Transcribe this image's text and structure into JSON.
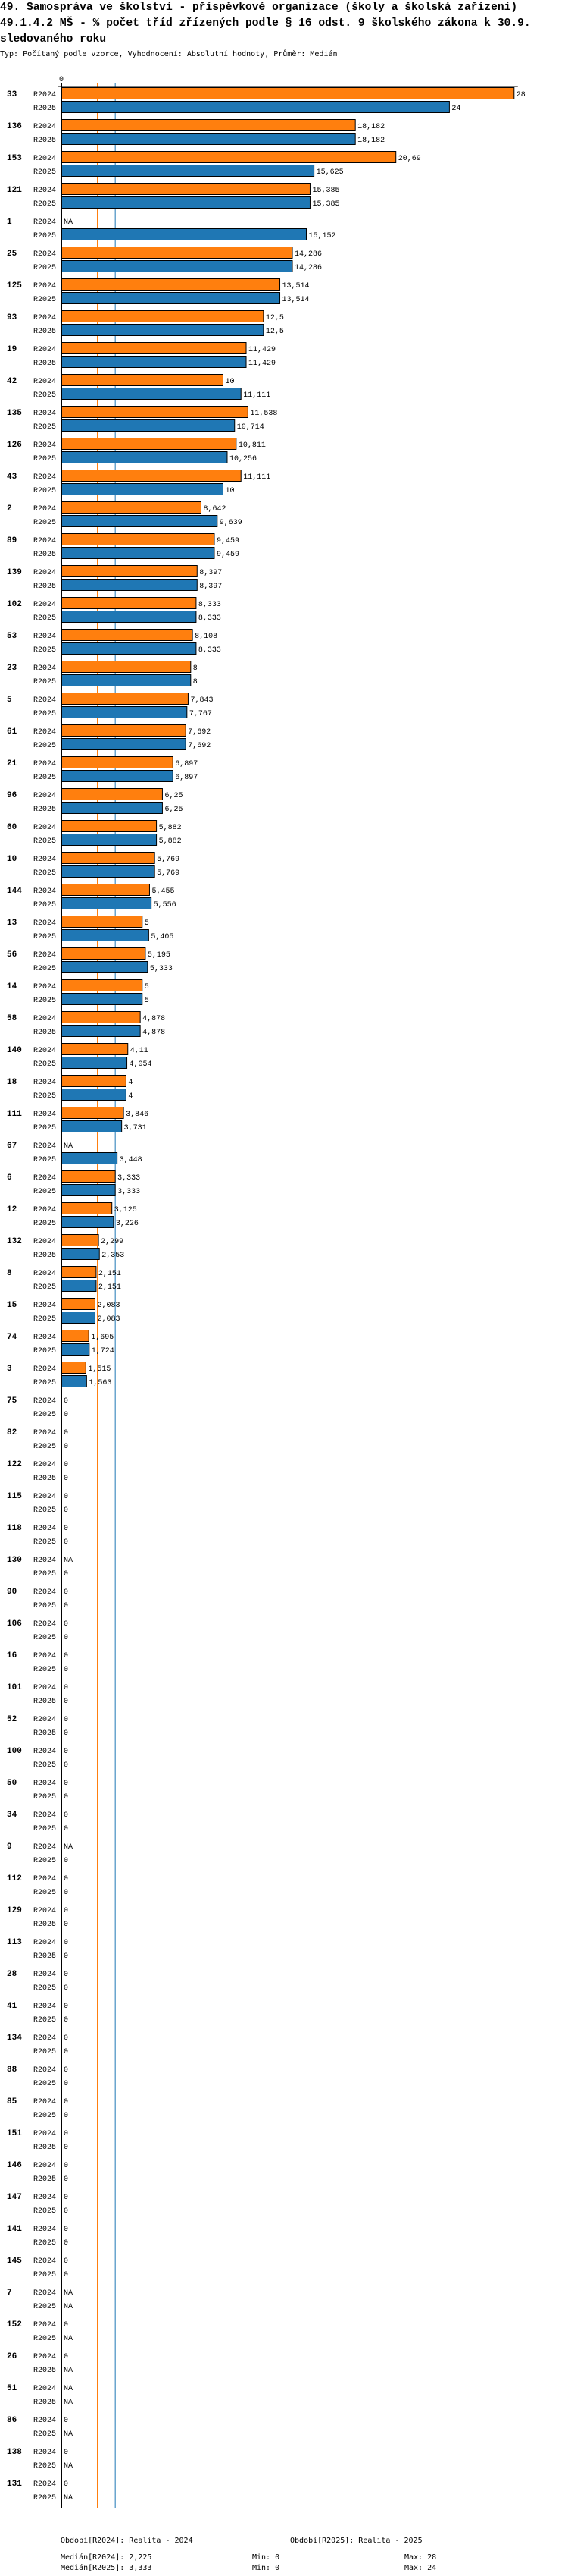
{
  "header": {
    "title": "49. Samospráva ve školství - příspěvkové organizace (školy a školská zařízení) 49.1.4.2 MŠ - % počet tříd zřízených podle § 16 odst. 9 školského zákona k 30.9. sledovaného roku",
    "subtitle": "Typ: Počítaný podle vzorce, Vyhodnocení: Absolutní hodnoty, Průměr: Medián"
  },
  "chart_data": {
    "type": "bar",
    "orientation": "horizontal",
    "title": "49.1.4.2 MŠ - % počet tříd zřízených podle § 16 odst. 9 školského zákona k 30.9. sledovaného roku",
    "x_tick_labels": [
      "0"
    ],
    "xlim": [
      0,
      28
    ],
    "na_label": "NA",
    "categories": [
      "33",
      "136",
      "153",
      "121",
      "1",
      "25",
      "125",
      "93",
      "19",
      "42",
      "135",
      "126",
      "43",
      "2",
      "89",
      "139",
      "102",
      "53",
      "23",
      "5",
      "61",
      "21",
      "96",
      "60",
      "10",
      "144",
      "13",
      "56",
      "14",
      "58",
      "140",
      "18",
      "111",
      "67",
      "6",
      "12",
      "132",
      "8",
      "15",
      "74",
      "3",
      "75",
      "82",
      "122",
      "115",
      "118",
      "130",
      "90",
      "106",
      "16",
      "101",
      "52",
      "100",
      "50",
      "34",
      "9",
      "112",
      "129",
      "113",
      "28",
      "41",
      "134",
      "88",
      "85",
      "151",
      "146",
      "147",
      "141",
      "145",
      "7",
      "152",
      "26",
      "51",
      "86",
      "138",
      "131"
    ],
    "series": [
      {
        "name": "R2024",
        "color": "#ff7f0e",
        "values": [
          28,
          18.182,
          20.69,
          15.385,
          null,
          14.286,
          13.514,
          12.5,
          11.429,
          10,
          11.538,
          10.811,
          11.111,
          8.642,
          9.459,
          8.397,
          8.333,
          8.108,
          8,
          7.843,
          7.692,
          6.897,
          6.25,
          5.882,
          5.769,
          5.455,
          5,
          5.195,
          5,
          4.878,
          4.11,
          4,
          3.846,
          null,
          3.333,
          3.125,
          2.299,
          2.151,
          2.083,
          1.695,
          1.515,
          0,
          0,
          0,
          0,
          0,
          null,
          0,
          0,
          0,
          0,
          0,
          0,
          0,
          0,
          null,
          0,
          0,
          0,
          0,
          0,
          0,
          0,
          0,
          0,
          0,
          0,
          0,
          0,
          null,
          0,
          0,
          null,
          0,
          0,
          0
        ]
      },
      {
        "name": "R2025",
        "color": "#1f77b4",
        "values": [
          24,
          18.182,
          15.625,
          15.385,
          15.152,
          14.286,
          13.514,
          12.5,
          11.429,
          11.111,
          10.714,
          10.256,
          10,
          9.639,
          9.459,
          8.397,
          8.333,
          8.333,
          8,
          7.767,
          7.692,
          6.897,
          6.25,
          5.882,
          5.769,
          5.556,
          5.405,
          5.333,
          5,
          4.878,
          4.054,
          4,
          3.731,
          3.448,
          3.333,
          3.226,
          2.353,
          2.151,
          2.083,
          1.724,
          1.563,
          0,
          0,
          0,
          0,
          0,
          0,
          0,
          0,
          0,
          0,
          0,
          0,
          0,
          0,
          0,
          0,
          0,
          0,
          0,
          0,
          0,
          0,
          0,
          0,
          0,
          0,
          0,
          0,
          null,
          null,
          null,
          null,
          null,
          null,
          null
        ]
      }
    ],
    "medians": {
      "R2024": 2.225,
      "R2025": 3.333
    }
  },
  "footer": {
    "period_2024": "Období[R2024]: Realita - 2024",
    "period_2025": "Období[R2025]: Realita - 2025",
    "median_2024": "Medián[R2024]: 2,225",
    "median_2025": "Medián[R2025]: 3,333",
    "min_2024": "Min: 0",
    "min_2025": "Min: 0",
    "max_2024": "Max: 28",
    "max_2025": "Max: 24"
  }
}
